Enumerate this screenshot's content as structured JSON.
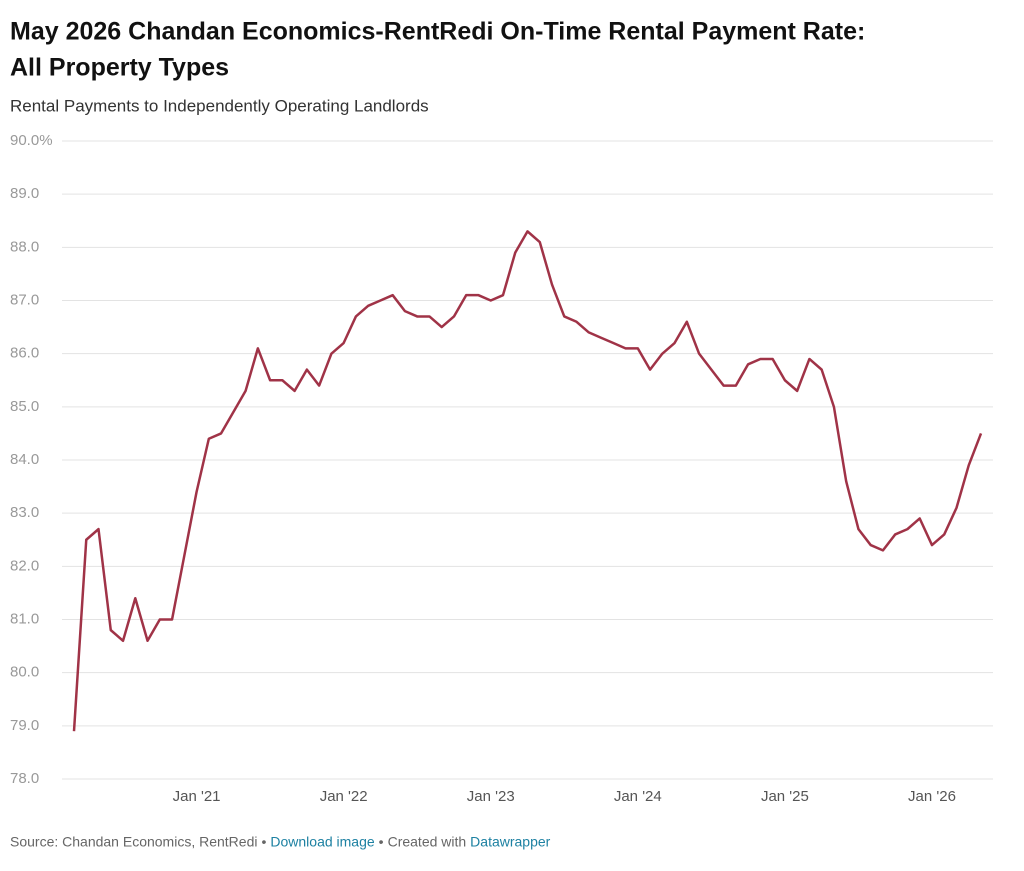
{
  "chart_data": {
    "type": "line",
    "title": "May 2026 Chandan Economics-RentRedi On-Time Rental Payment Rate:",
    "title_line2": "All Property Types",
    "subtitle": "Rental Payments to Independently Operating Landlords",
    "x": [
      "2020-03",
      "2020-04",
      "2020-05",
      "2020-06",
      "2020-07",
      "2020-08",
      "2020-09",
      "2020-10",
      "2020-11",
      "2020-12",
      "2021-01",
      "2021-02",
      "2021-03",
      "2021-04",
      "2021-05",
      "2021-06",
      "2021-07",
      "2021-08",
      "2021-09",
      "2021-10",
      "2021-11",
      "2021-12",
      "2022-01",
      "2022-02",
      "2022-03",
      "2022-04",
      "2022-05",
      "2022-06",
      "2022-07",
      "2022-08",
      "2022-09",
      "2022-10",
      "2022-11",
      "2022-12",
      "2023-01",
      "2023-02",
      "2023-03",
      "2023-04",
      "2023-05",
      "2023-06",
      "2023-07",
      "2023-08",
      "2023-09",
      "2023-10",
      "2023-11",
      "2023-12",
      "2024-01",
      "2024-02",
      "2024-03",
      "2024-04",
      "2024-05",
      "2024-06",
      "2024-07",
      "2024-08",
      "2024-09",
      "2024-10",
      "2024-11",
      "2024-12",
      "2025-01",
      "2025-02",
      "2025-03",
      "2025-04",
      "2025-05",
      "2025-06",
      "2025-07",
      "2025-08",
      "2025-09",
      "2025-10",
      "2025-11",
      "2025-12",
      "2026-01",
      "2026-02",
      "2026-03",
      "2026-04",
      "2026-05"
    ],
    "series": [
      {
        "name": "On-Time Rental Payment Rate",
        "color": "#a03347",
        "values": [
          78.9,
          82.5,
          82.7,
          80.8,
          80.6,
          81.4,
          80.6,
          81.0,
          81.0,
          82.2,
          83.4,
          84.4,
          84.5,
          84.9,
          85.3,
          86.1,
          85.5,
          85.5,
          85.3,
          85.7,
          85.4,
          86.0,
          86.2,
          86.7,
          86.9,
          87.0,
          87.1,
          86.8,
          86.7,
          86.7,
          86.5,
          86.7,
          87.1,
          87.1,
          87.0,
          87.1,
          87.9,
          88.3,
          88.1,
          87.3,
          86.7,
          86.6,
          86.4,
          86.3,
          86.2,
          86.1,
          86.1,
          85.7,
          86.0,
          86.2,
          86.6,
          86.0,
          85.7,
          85.4,
          85.4,
          85.8,
          85.9,
          85.9,
          85.5,
          85.3,
          85.9,
          85.7,
          85.0,
          83.6,
          82.7,
          82.4,
          82.3,
          82.6,
          82.7,
          82.9,
          82.4,
          82.6,
          83.1,
          83.9,
          84.5
        ]
      }
    ],
    "ylim": [
      78,
      90
    ],
    "yticks": [
      {
        "value": 78,
        "label": "78.0"
      },
      {
        "value": 79,
        "label": "79.0"
      },
      {
        "value": 80,
        "label": "80.0"
      },
      {
        "value": 81,
        "label": "81.0"
      },
      {
        "value": 82,
        "label": "82.0"
      },
      {
        "value": 83,
        "label": "83.0"
      },
      {
        "value": 84,
        "label": "84.0"
      },
      {
        "value": 85,
        "label": "85.0"
      },
      {
        "value": 86,
        "label": "86.0"
      },
      {
        "value": 87,
        "label": "87.0"
      },
      {
        "value": 88,
        "label": "88.0"
      },
      {
        "value": 89,
        "label": "89.0"
      },
      {
        "value": 90,
        "label": "90.0%"
      }
    ],
    "xticks": [
      {
        "value": "2021-01",
        "label": "Jan '21"
      },
      {
        "value": "2022-01",
        "label": "Jan '22"
      },
      {
        "value": "2023-01",
        "label": "Jan '23"
      },
      {
        "value": "2024-01",
        "label": "Jan '24"
      },
      {
        "value": "2025-01",
        "label": "Jan '25"
      },
      {
        "value": "2026-01",
        "label": "Jan '26"
      }
    ],
    "grid": true,
    "footer": {
      "source": "Source: Chandan Economics, RentRedi",
      "separator": "•",
      "download": "Download image",
      "created_with": "Created with",
      "tool": "Datawrapper"
    }
  }
}
